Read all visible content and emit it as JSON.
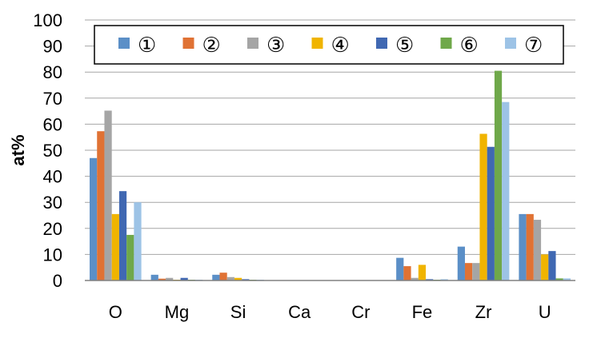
{
  "chart_data": {
    "type": "bar",
    "title": "",
    "xlabel": "",
    "ylabel": "at%",
    "ylim": [
      0,
      100
    ],
    "ytick_step": 10,
    "grid": true,
    "legend_position": "top",
    "categories": [
      "O",
      "Mg",
      "Si",
      "Ca",
      "Cr",
      "Fe",
      "Zr",
      "U"
    ],
    "series": [
      {
        "name": "①",
        "color": "#5B8FC7",
        "values": [
          47,
          2.2,
          2.2,
          0,
          0,
          8.7,
          13,
          25.5
        ]
      },
      {
        "name": "②",
        "color": "#E07234",
        "values": [
          57.3,
          0.7,
          3,
          0,
          0,
          5.5,
          6.7,
          25.5
        ]
      },
      {
        "name": "③",
        "color": "#A5A5A5",
        "values": [
          65.2,
          1,
          1.3,
          0,
          0,
          1,
          6.7,
          23.3
        ]
      },
      {
        "name": "④",
        "color": "#F0B400",
        "values": [
          25.5,
          0.3,
          1,
          0,
          0,
          6,
          56.3,
          10
        ]
      },
      {
        "name": "⑤",
        "color": "#4068B2",
        "values": [
          34.3,
          1,
          0.5,
          0,
          0,
          0.5,
          51.3,
          11.3
        ]
      },
      {
        "name": "⑥",
        "color": "#6FA84A",
        "values": [
          17.5,
          0.3,
          0.3,
          0,
          0,
          0.3,
          80.5,
          0.8
        ]
      },
      {
        "name": "⑦",
        "color": "#9DC3E6",
        "values": [
          30,
          0.3,
          0.3,
          0,
          0,
          0.5,
          68.5,
          0.8
        ]
      }
    ]
  }
}
